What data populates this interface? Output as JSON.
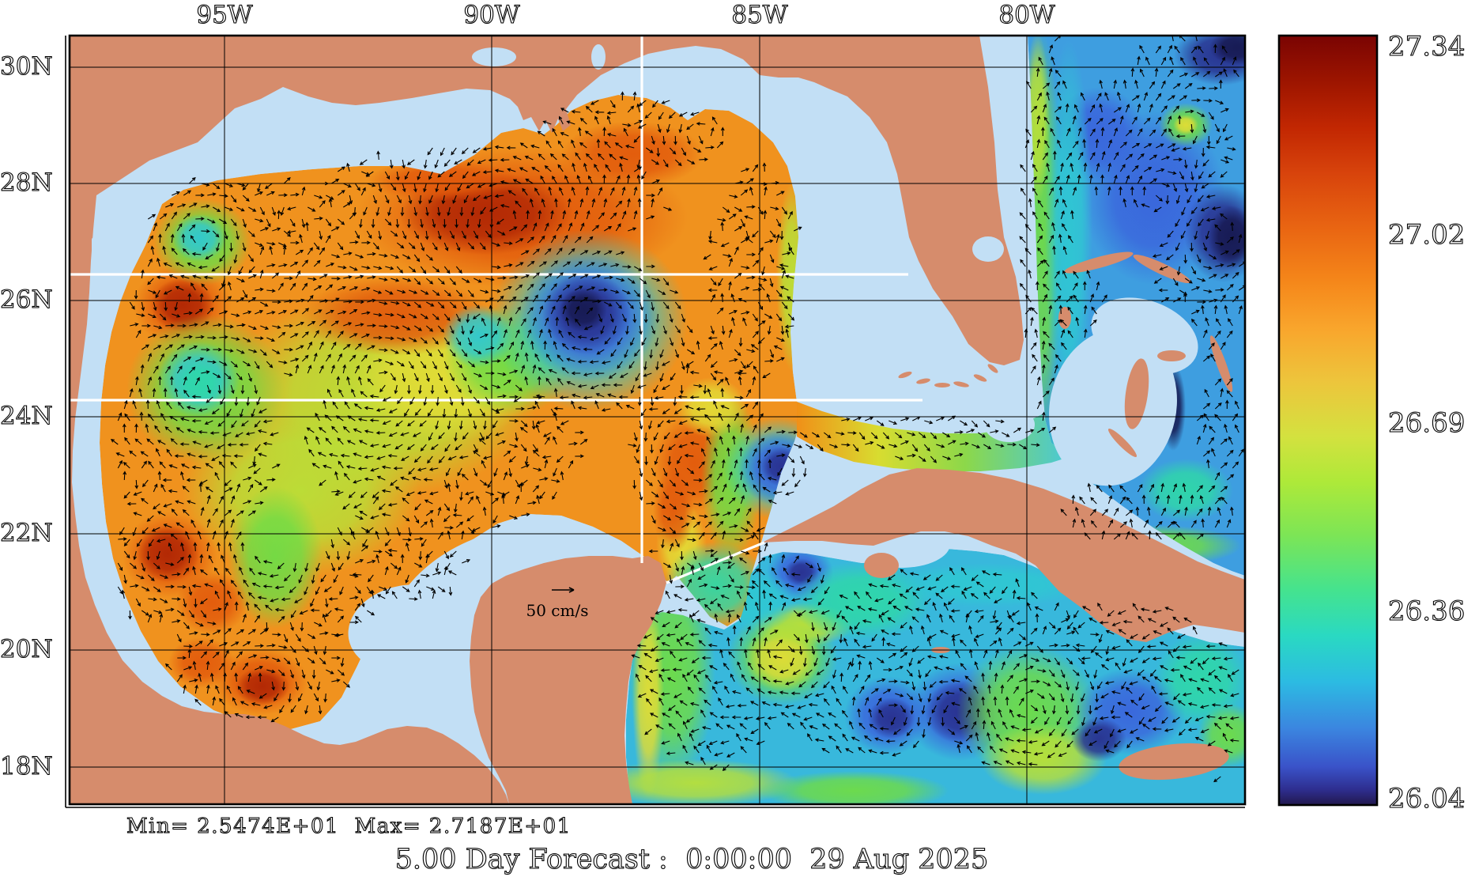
{
  "figure": {
    "title": "5.00 Day Forecast :  0:00:00  29 Aug 2025",
    "stats": "Min= 2.5474E+01  Max= 2.7187E+01",
    "vector_scale_label": "50 cm/s",
    "axis": {
      "lon_labels": [
        "95W",
        "90W",
        "85W",
        "80W"
      ],
      "lat_labels": [
        "30N",
        "28N",
        "26N",
        "24N",
        "22N",
        "20N",
        "18N"
      ]
    },
    "colorbar": {
      "tick_labels": [
        "27.34",
        "27.02",
        "26.69",
        "26.36",
        "26.04"
      ]
    },
    "colors": {
      "land": "#D68C6C",
      "shallow_water": "#C2DFF5",
      "background": "#FFFFFF",
      "grid": "#000000",
      "transect": "#FFFFFF"
    }
  }
}
